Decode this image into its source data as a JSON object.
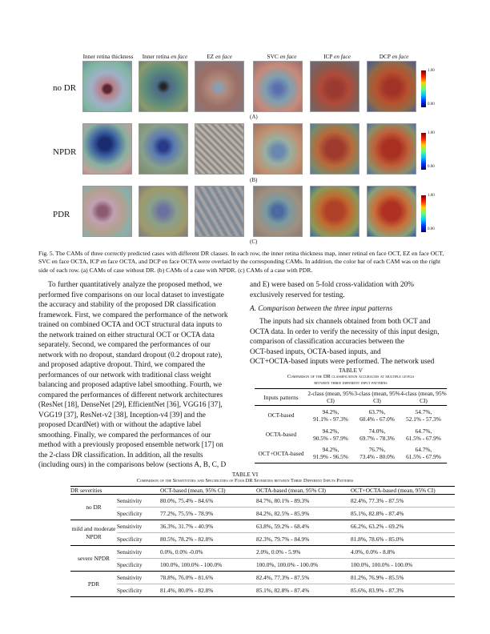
{
  "figure": {
    "column_headers": [
      "Inner retina thickness",
      "Inner retina en face",
      "EZ en face",
      "SVC en face",
      "ICP en face",
      "DCP en face"
    ],
    "column_headers_parts": [
      {
        "a": "Inner retina thickness",
        "b": ""
      },
      {
        "a": "Inner retina ",
        "b": "en face"
      },
      {
        "a": "EZ ",
        "b": "en face"
      },
      {
        "a": "SVC ",
        "b": "en face"
      },
      {
        "a": "ICP ",
        "b": "en face"
      },
      {
        "a": "DCP ",
        "b": "en face"
      }
    ],
    "rows": [
      {
        "label": "no DR",
        "sublabel": "(A)"
      },
      {
        "label": "NPDR",
        "sublabel": "(B)"
      },
      {
        "label": "PDR",
        "sublabel": "(C)"
      }
    ],
    "colorbar": {
      "max": "1.00",
      "min": "0.00"
    }
  },
  "caption": "Fig. 5.  The CAMs of three correctly predicted cases with different DR classes. In each row, the inner retina thickness map, inner retinal en face OCT, EZ en face OCT, SVC en face OCTA, ICP en face OCTA, and DCP en face OCTA were overlaid by the corresponding CAMs. In addition, the color bar of each CAM was on the right side of each row. (a) CAMs of case without DR. (b) CAMs of a case with NPDR. (c) CAMs of a case with PDR.",
  "left_column": {
    "lines": [
      "To further quantitatively analyze the proposed method, we",
      "performed five comparisons on our local dataset to investigate",
      "the accuracy and stability of the proposed DR classification",
      "framework. First, we compared the performance of the network",
      "trained on combined OCTA and OCT structural data inputs to",
      "the network trained on either structural OCT or OCTA data",
      "separately. Second, we compared the performances of our",
      "network with no dropout, standard dropout (0.2 dropout rate),",
      "and proposed adaptive dropout. Third, we compared the",
      "performances of our network with traditional class weight",
      "balancing and proposed adaptive label smoothing. Fourth, we",
      "compared the performances of different network architectures",
      "(ResNet [18], DenseNet [29], EfficientNet [36], VGG16 [37],",
      "VGG19 [37], ResNet-v2 [38], Inception-v4 [39] and the",
      "proposed DcardNet) with or without the adaptive label",
      "smoothing. Finally, we compared the performances of our",
      "method with a previously proposed ensemble network [17] on",
      "the 2-class DR classification. In addition, all the results",
      "(including ours) in the comparisons below (sections A, B, C, D"
    ]
  },
  "right_column": {
    "lines_top": [
      "and E) were based on 5-fold cross-validation with 20%",
      "exclusively reserved for testing."
    ],
    "section_heading": "A.  Comparison between the three input patterns",
    "lines_mid": [
      "The inputs had six channels obtained from both OCT and",
      "OCTA data. In order to verify the necessity of this input design,",
      "comparison of classification accuracies between the",
      "OCT-based inputs, OCTA-based inputs, and",
      "OCT+OCTA-based inputs were performed. The network used"
    ]
  },
  "table5": {
    "label": "TABLE V",
    "title_line1": "Comparison of the DR classification accuracies at multiple levels",
    "title_line2": "between three different input patterns",
    "headers": [
      "Inputs patterns",
      "2-class (mean, 95% CI)",
      "3-class (mean, 95% CI)",
      "4-class (mean, 95% CI)"
    ],
    "rows": [
      {
        "pattern": "OCT-based",
        "c2": [
          "94.2%,",
          "91.1% - 97.3%"
        ],
        "c3": [
          "63.7%,",
          "60.4% - 67.0%"
        ],
        "c4": [
          "54.7%,",
          "52.1% - 57.3%"
        ]
      },
      {
        "pattern": "OCTA-based",
        "c2": [
          "94.2%,",
          "90.5% - 97.9%"
        ],
        "c3": [
          "74.0%,",
          "69.7% - 78.3%"
        ],
        "c4": [
          "64.7%,",
          "61.5% - 67.9%"
        ]
      },
      {
        "pattern": "OCT+OCTA-based",
        "c2": [
          "94.2%,",
          "91.9% - 96.5%"
        ],
        "c3": [
          "76.7%,",
          "73.4% - 80.0%"
        ],
        "c4": [
          "64.7%,",
          "61.5% - 67.9%"
        ]
      }
    ]
  },
  "table6": {
    "label": "TABLE VI",
    "title": "Comparison of the Sensitivities and Specificities of Four DR Severities between Three Different Inputs Patterns",
    "headers": [
      "DR severities",
      "",
      "OCT-based (mean, 95% CI)",
      "OCTA-based (mean, 95% CI)",
      "OCT+OCTA-based (mean, 95% CI)"
    ],
    "groups": [
      {
        "severity": "no DR",
        "rows": [
          {
            "metric": "Sensitivity",
            "oct": "80.0%, 75.4% - 84.6%",
            "octa": "84.7%, 80.1% - 89.3%",
            "both": "82.4%, 77.3% - 87.5%"
          },
          {
            "metric": "Specificity",
            "oct": "77.2%, 75.5% - 78.9%",
            "octa": "84.2%, 82.5% - 85.9%",
            "both": "85.1%, 82.8% - 87.4%"
          }
        ]
      },
      {
        "severity": "mild and moderate NPDR",
        "rows": [
          {
            "metric": "Sensitivity",
            "oct": "36.3%, 31.7% - 40.9%",
            "octa": "63.8%, 59.2% - 68.4%",
            "both": "66.2%, 63.2% - 69.2%"
          },
          {
            "metric": "Specificity",
            "oct": "80.5%, 78.2% - 82.8%",
            "octa": "82.3%, 79.7% - 84.9%",
            "both": "81.8%, 78.6% - 85.0%"
          }
        ]
      },
      {
        "severity": "severe NPDR",
        "rows": [
          {
            "metric": "Sensitivity",
            "oct": "0.0%, 0.0% -0.0%",
            "octa": "2.0%, 0.0% - 5.9%",
            "both": "4.0%, 0.0% - 8.8%"
          },
          {
            "metric": "Specificity",
            "oct": "100.0%, 100.0% - 100.0%",
            "octa": "100.0%, 100.0% - 100.0%",
            "both": "100.0%, 100.0% - 100.0%"
          }
        ]
      },
      {
        "severity": "PDR",
        "rows": [
          {
            "metric": "Sensitivity",
            "oct": "78.8%, 76.0% - 81.6%",
            "octa": "82.4%, 77.3% - 87.5%",
            "both": "81.2%, 76.9% - 85.5%"
          },
          {
            "metric": "Specificity",
            "oct": "81.4%, 80.0% - 82.8%",
            "octa": "85.1%, 82.8% - 87.4%",
            "both": "85.6%, 83.9% - 87.3%"
          }
        ]
      }
    ]
  }
}
